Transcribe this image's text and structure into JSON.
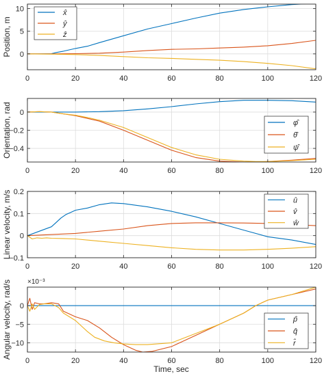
{
  "figure": {
    "xlabel": "Time, sec",
    "background": "#ffffff",
    "axes_background": "#ffffff",
    "grid_color": "#dcdcdc",
    "axis_color": "#262626"
  },
  "chart_data": [
    {
      "type": "line",
      "ylabel": "Position, m",
      "xlim": [
        0,
        120
      ],
      "ylim": [
        -3.5,
        11
      ],
      "xticks": [
        0,
        20,
        40,
        60,
        80,
        100,
        120
      ],
      "yticks": [
        10,
        5,
        0
      ],
      "grid": true,
      "legend_position": "top-left",
      "series": [
        {
          "name": "x̂",
          "color": "#0072BD",
          "x": [
            0,
            5,
            10,
            12,
            15,
            20,
            25,
            30,
            40,
            50,
            60,
            70,
            80,
            90,
            100,
            110,
            120
          ],
          "y": [
            0,
            0,
            0.05,
            0.3,
            0.6,
            1.2,
            1.7,
            2.5,
            4.0,
            5.5,
            6.7,
            7.9,
            9.0,
            9.8,
            10.4,
            10.9,
            11.2
          ]
        },
        {
          "name": "ŷ",
          "color": "#D95319",
          "x": [
            0,
            10,
            20,
            30,
            40,
            50,
            60,
            70,
            80,
            90,
            100,
            110,
            120
          ],
          "y": [
            0,
            0,
            0.05,
            0.15,
            0.4,
            0.75,
            1.0,
            1.1,
            1.3,
            1.5,
            1.8,
            2.3,
            3.0
          ]
        },
        {
          "name": "ẑ",
          "color": "#EDB120",
          "x": [
            0,
            10,
            20,
            30,
            40,
            50,
            60,
            70,
            80,
            90,
            100,
            110,
            120
          ],
          "y": [
            0,
            -0.05,
            -0.15,
            -0.35,
            -0.6,
            -0.85,
            -1.0,
            -1.2,
            -1.4,
            -1.7,
            -2.1,
            -2.6,
            -3.3
          ]
        }
      ]
    },
    {
      "type": "line",
      "ylabel": "Orientation, rad",
      "xlim": [
        0,
        120
      ],
      "ylim": [
        -0.55,
        0.15
      ],
      "xticks": [
        0,
        20,
        40,
        60,
        80,
        100,
        120
      ],
      "yticks": [
        0,
        -0.2,
        -0.4
      ],
      "grid": true,
      "legend_position": "bottom-right",
      "series": [
        {
          "name": "φ̂",
          "color": "#0072BD",
          "x": [
            0,
            10,
            20,
            30,
            40,
            50,
            60,
            70,
            80,
            90,
            100,
            110,
            120
          ],
          "y": [
            0,
            0,
            0,
            0.005,
            0.015,
            0.035,
            0.06,
            0.09,
            0.115,
            0.13,
            0.13,
            0.125,
            0.11
          ]
        },
        {
          "name": "θ̂",
          "color": "#D95319",
          "x": [
            0,
            5,
            10,
            15,
            20,
            25,
            30,
            40,
            50,
            60,
            70,
            80,
            90,
            95,
            100,
            110,
            120
          ],
          "y": [
            0,
            0.005,
            0,
            -0.02,
            -0.04,
            -0.07,
            -0.1,
            -0.2,
            -0.31,
            -0.42,
            -0.5,
            -0.54,
            -0.55,
            -0.55,
            -0.545,
            -0.53,
            -0.51
          ]
        },
        {
          "name": "ψ̂",
          "color": "#EDB120",
          "x": [
            0,
            5,
            10,
            15,
            20,
            25,
            30,
            40,
            50,
            60,
            70,
            80,
            90,
            95,
            100,
            110,
            120
          ],
          "y": [
            0,
            0.005,
            0,
            -0.02,
            -0.035,
            -0.06,
            -0.09,
            -0.17,
            -0.28,
            -0.39,
            -0.47,
            -0.52,
            -0.54,
            -0.545,
            -0.545,
            -0.535,
            -0.52
          ]
        }
      ]
    },
    {
      "type": "line",
      "ylabel": "Linear velocity, m/s",
      "xlim": [
        0,
        120
      ],
      "ylim": [
        -0.1,
        0.2
      ],
      "xticks": [
        0,
        20,
        40,
        60,
        80,
        100,
        120
      ],
      "yticks": [
        0.2,
        0.1,
        0,
        -0.1
      ],
      "grid": true,
      "legend_position": "top-right",
      "series": [
        {
          "name": "û",
          "color": "#0072BD",
          "x": [
            0,
            5,
            10,
            12,
            14,
            16,
            18,
            20,
            25,
            30,
            35,
            40,
            50,
            60,
            70,
            80,
            90,
            100,
            110,
            120
          ],
          "y": [
            0,
            0.02,
            0.04,
            0.06,
            0.08,
            0.095,
            0.105,
            0.115,
            0.125,
            0.14,
            0.148,
            0.145,
            0.13,
            0.11,
            0.085,
            0.055,
            0.025,
            -0.005,
            -0.02,
            -0.04
          ]
        },
        {
          "name": "v̂",
          "color": "#D95319",
          "x": [
            0,
            10,
            20,
            30,
            40,
            50,
            60,
            70,
            80,
            90,
            100,
            110,
            120
          ],
          "y": [
            0,
            0.005,
            0.01,
            0.02,
            0.03,
            0.045,
            0.055,
            0.058,
            0.058,
            0.057,
            0.055,
            0.05,
            0.045
          ]
        },
        {
          "name": "ŵ",
          "color": "#EDB120",
          "x": [
            0,
            2,
            4,
            6,
            8,
            10,
            15,
            20,
            30,
            40,
            50,
            60,
            70,
            80,
            90,
            100,
            110,
            120
          ],
          "y": [
            0,
            -0.015,
            -0.01,
            -0.012,
            -0.01,
            -0.012,
            -0.013,
            -0.015,
            -0.025,
            -0.035,
            -0.045,
            -0.055,
            -0.062,
            -0.065,
            -0.065,
            -0.062,
            -0.057,
            -0.05
          ]
        }
      ]
    },
    {
      "type": "line",
      "ylabel": "Angular velocity, rad/s",
      "exponent_label": "×10⁻³",
      "xlim": [
        0,
        120
      ],
      "ylim": [
        -12.5,
        5
      ],
      "xticks": [
        0,
        20,
        40,
        60,
        80,
        100,
        120
      ],
      "yticks": [
        0,
        -5,
        -10
      ],
      "grid": true,
      "legend_position": "bottom-right",
      "series": [
        {
          "name": "p̂",
          "color": "#0072BD",
          "x": [
            0,
            20,
            40,
            60,
            80,
            100,
            120
          ],
          "y": [
            0,
            0,
            0,
            0,
            0,
            0,
            0
          ]
        },
        {
          "name": "q̂",
          "color": "#D95319",
          "x": [
            0,
            1,
            2,
            3,
            5,
            7,
            10,
            13,
            15,
            20,
            25,
            30,
            35,
            40,
            45,
            48,
            52,
            60,
            70,
            80,
            90,
            95,
            100,
            110,
            120
          ],
          "y": [
            0,
            2,
            -1,
            0.8,
            0.5,
            0.5,
            0.8,
            0.5,
            -1.5,
            -3,
            -4,
            -6,
            -8.5,
            -10.5,
            -12,
            -12.5,
            -12.3,
            -11,
            -8,
            -5,
            -2,
            0,
            1.5,
            3,
            4.5
          ]
        },
        {
          "name": "r̂",
          "color": "#EDB120",
          "x": [
            0,
            1,
            2,
            3,
            5,
            7,
            10,
            13,
            15,
            20,
            25,
            28,
            32,
            36,
            40,
            45,
            50,
            60,
            70,
            80,
            90,
            95,
            100,
            110,
            120
          ],
          "y": [
            0,
            -1.5,
            0.5,
            -1,
            0.3,
            0.5,
            0.5,
            -0.5,
            -2,
            -4,
            -7,
            -8.5,
            -9.5,
            -10,
            -10.3,
            -10.5,
            -10.5,
            -10,
            -7.5,
            -5,
            -2,
            0,
            1.5,
            3,
            5
          ]
        }
      ]
    }
  ]
}
